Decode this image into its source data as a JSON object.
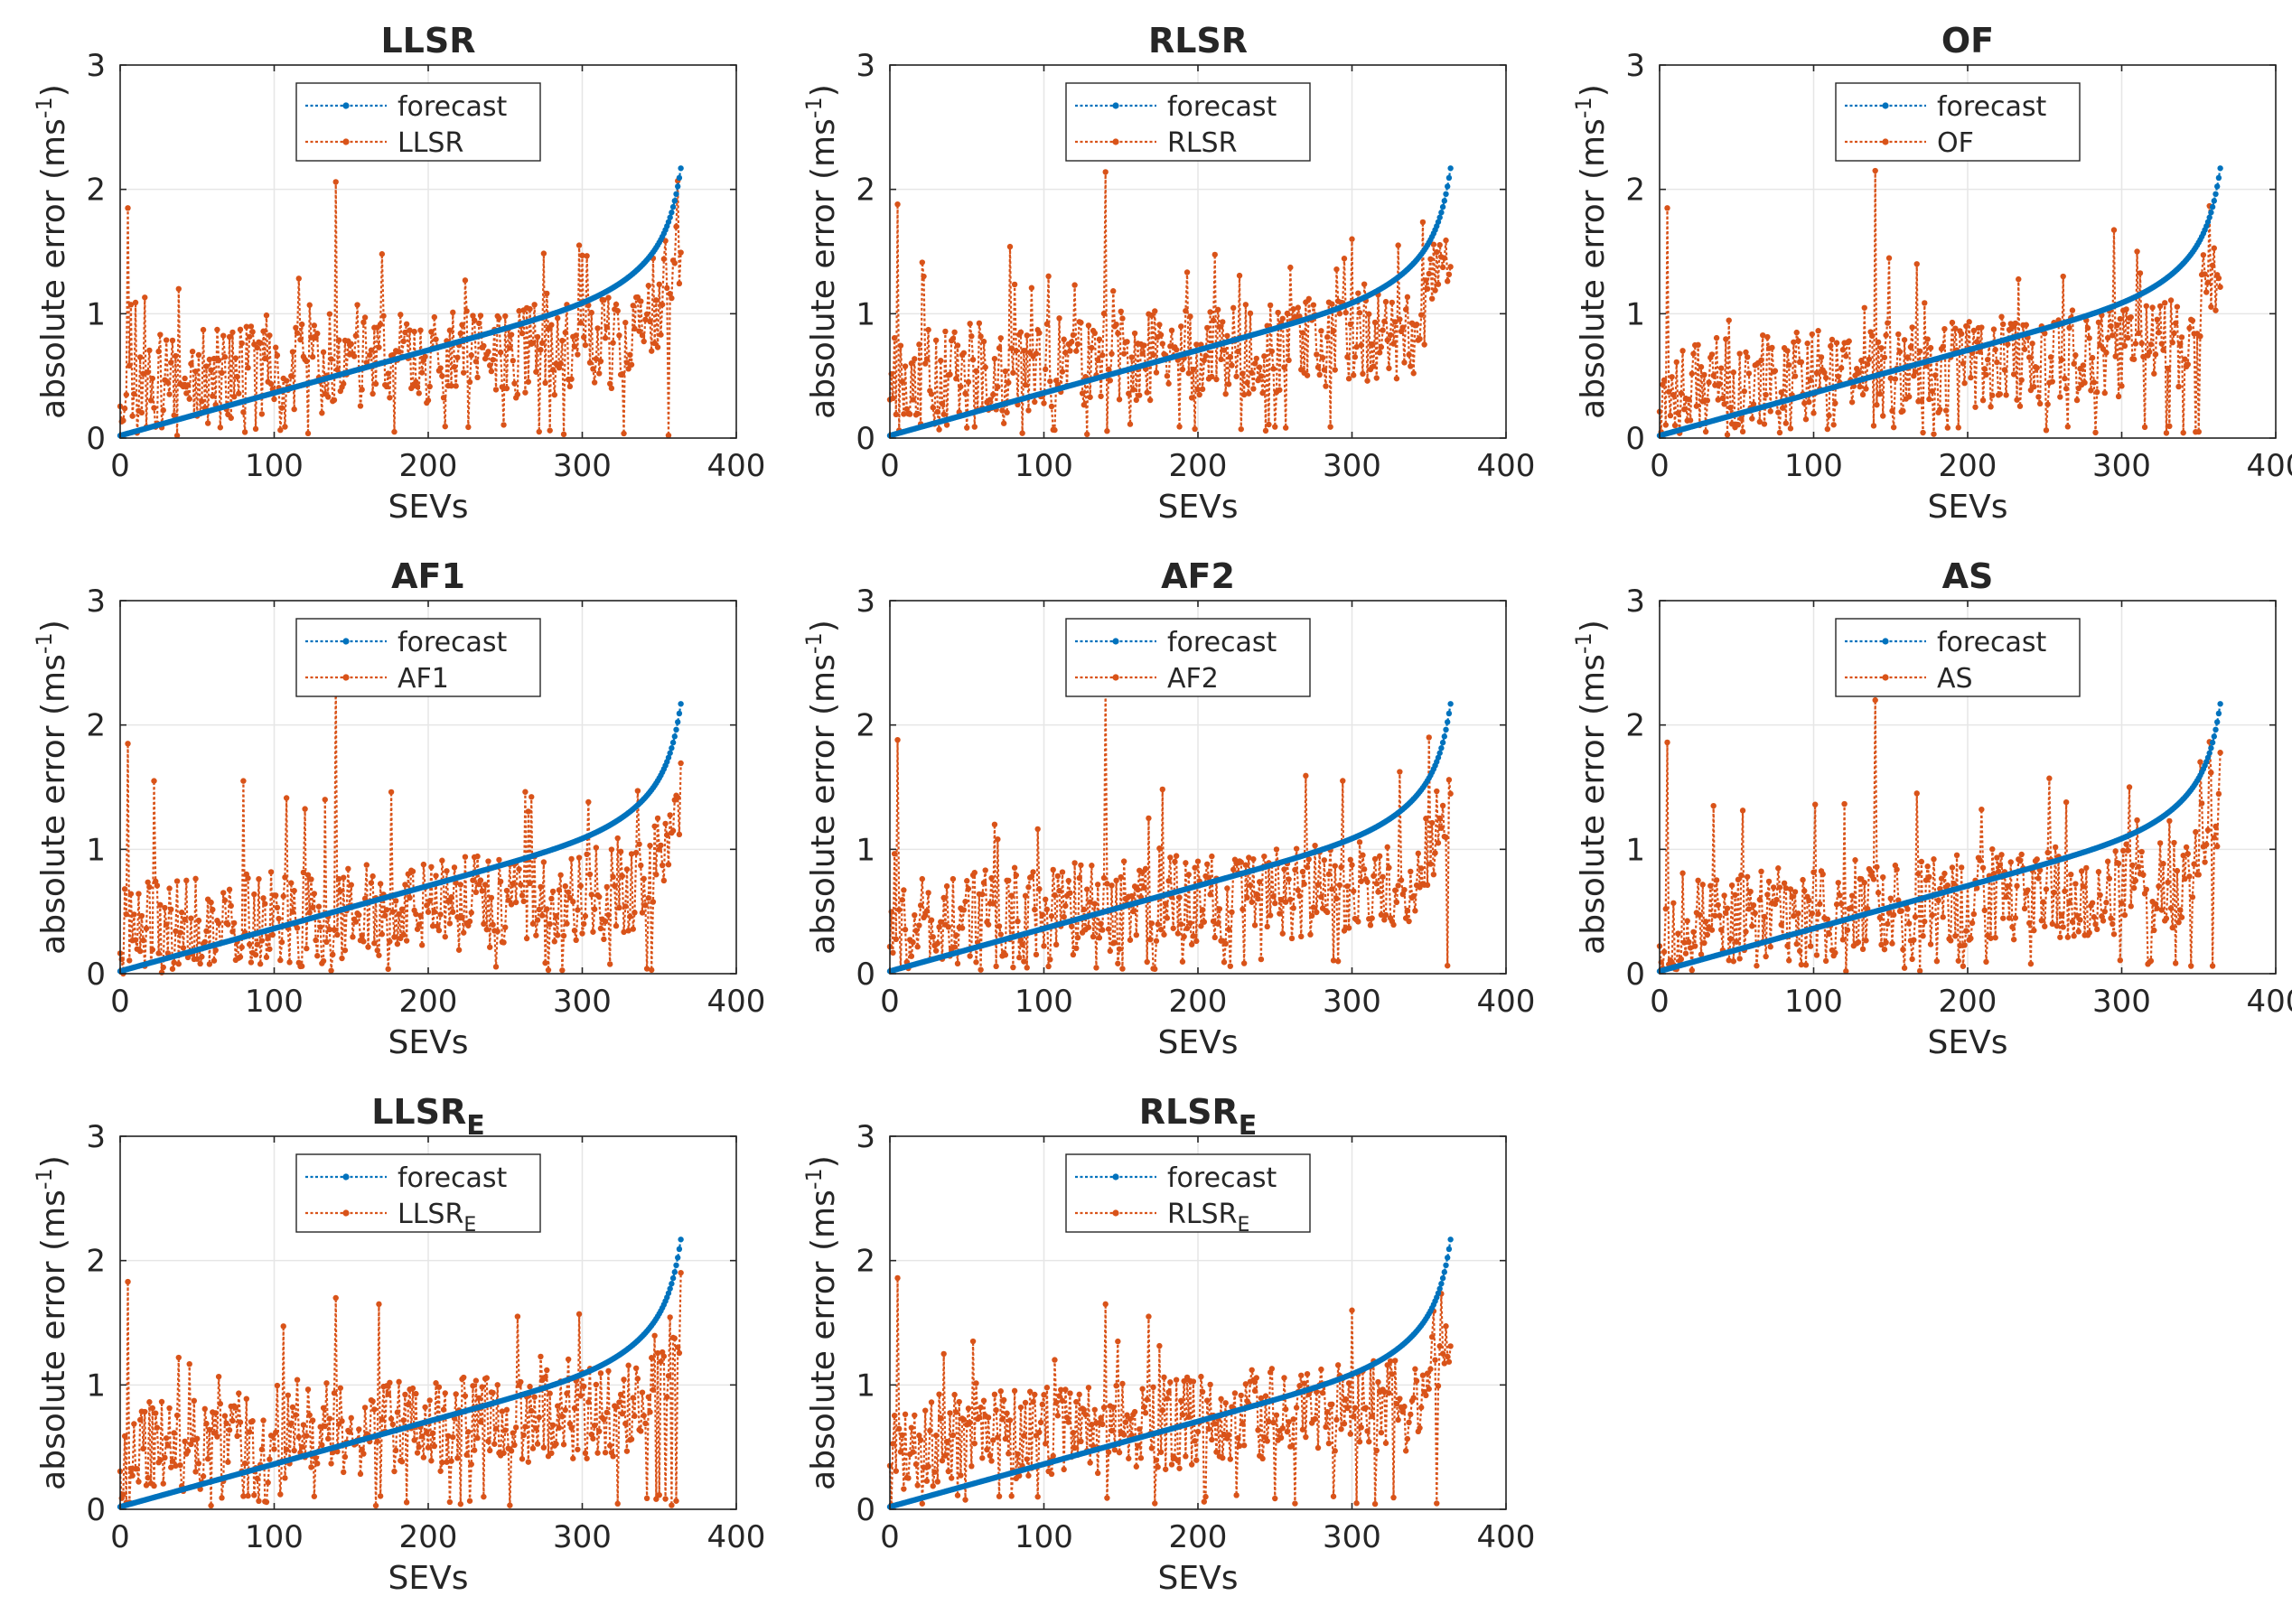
{
  "figure": {
    "layout": "3x3 grid, 8 panels"
  },
  "colors": {
    "forecast": "#0072BD",
    "model": "#D95319",
    "grid": "#e6e6e6",
    "axis": "#262626"
  },
  "chart_data": [
    {
      "type": "line",
      "title": "LLSR",
      "title_sub": "",
      "xlabel": "SEVs",
      "ylabel": "absolute error (ms-1)",
      "ylabel_main": "absolute error (ms",
      "ylabel_sup": "-1",
      "ylabel_close": ")",
      "xlim": [
        0,
        400
      ],
      "ylim": [
        0,
        3
      ],
      "xticks": [
        "0",
        "100",
        "200",
        "300",
        "400"
      ],
      "yticks": [
        "0",
        "1",
        "2",
        "3"
      ],
      "grid": true,
      "legend_position": "top-center",
      "series": [
        {
          "name": "forecast",
          "legend_main": "forecast",
          "legend_sub": "",
          "style": "forecast"
        },
        {
          "name": "LLSR",
          "legend_main": "LLSR",
          "legend_sub": "",
          "style": "model",
          "seed": 11,
          "peaks": [
            [
              5,
              1.85
            ],
            [
              140,
              2.06
            ],
            [
              38,
              1.2
            ],
            [
              170,
              1.48
            ],
            [
              298,
              1.55
            ],
            [
              338,
              1.1
            ]
          ],
          "base_shift": 0.05,
          "tail_scale": 1.0
        }
      ]
    },
    {
      "type": "line",
      "title": "RLSR",
      "title_sub": "",
      "xlabel": "SEVs",
      "ylabel": "absolute error (ms-1)",
      "ylabel_main": "absolute error (ms",
      "ylabel_sup": "-1",
      "ylabel_close": ")",
      "xlim": [
        0,
        400
      ],
      "ylim": [
        0,
        3
      ],
      "xticks": [
        "0",
        "100",
        "200",
        "300",
        "400"
      ],
      "yticks": [
        "0",
        "1",
        "2",
        "3"
      ],
      "grid": true,
      "legend_position": "top-center",
      "series": [
        {
          "name": "forecast",
          "legend_main": "forecast",
          "legend_sub": "",
          "style": "forecast"
        },
        {
          "name": "RLSR",
          "legend_main": "RLSR",
          "legend_sub": "",
          "style": "model",
          "seed": 23,
          "peaks": [
            [
              5,
              1.88
            ],
            [
              140,
              2.14
            ],
            [
              22,
              1.3
            ],
            [
              300,
              1.6
            ],
            [
              330,
              1.55
            ]
          ],
          "base_shift": 0.1,
          "tail_scale": 1.0
        }
      ]
    },
    {
      "type": "line",
      "title": "OF",
      "title_sub": "",
      "xlabel": "SEVs",
      "ylabel": "absolute error (ms-1)",
      "ylabel_main": "absolute error (ms",
      "ylabel_sup": "-1",
      "ylabel_close": ")",
      "xlim": [
        0,
        400
      ],
      "ylim": [
        0,
        3
      ],
      "xticks": [
        "0",
        "100",
        "200",
        "300",
        "400"
      ],
      "yticks": [
        "0",
        "1",
        "2",
        "3"
      ],
      "grid": true,
      "legend_position": "top-center",
      "series": [
        {
          "name": "forecast",
          "legend_main": "forecast",
          "legend_sub": "",
          "style": "forecast"
        },
        {
          "name": "OF",
          "legend_main": "OF",
          "legend_sub": "",
          "style": "model",
          "seed": 37,
          "peaks": [
            [
              5,
              1.85
            ],
            [
              140,
              2.15
            ],
            [
              167,
              1.4
            ],
            [
              310,
              1.5
            ],
            [
              262,
              1.3
            ]
          ],
          "base_shift": 0.0,
          "tail_scale": 1.0
        }
      ]
    },
    {
      "type": "line",
      "title": "AF1",
      "title_sub": "",
      "xlabel": "SEVs",
      "ylabel": "absolute error (ms-1)",
      "ylabel_main": "absolute error (ms",
      "ylabel_sup": "-1",
      "ylabel_close": ")",
      "xlim": [
        0,
        400
      ],
      "ylim": [
        0,
        3
      ],
      "xticks": [
        "0",
        "100",
        "200",
        "300",
        "400"
      ],
      "yticks": [
        "0",
        "1",
        "2",
        "3"
      ],
      "grid": true,
      "legend_position": "top-center",
      "series": [
        {
          "name": "forecast",
          "legend_main": "forecast",
          "legend_sub": "",
          "style": "forecast"
        },
        {
          "name": "AF1",
          "legend_main": "AF1",
          "legend_sub": "",
          "style": "model",
          "seed": 41,
          "peaks": [
            [
              5,
              1.85
            ],
            [
              140,
              2.4
            ],
            [
              22,
              1.55
            ],
            [
              80,
              1.55
            ],
            [
              133,
              1.4
            ]
          ],
          "base_shift": -0.05,
          "tail_scale": 0.9
        }
      ]
    },
    {
      "type": "line",
      "title": "AF2",
      "title_sub": "",
      "xlabel": "SEVs",
      "ylabel": "absolute error (ms-1)",
      "ylabel_main": "absolute error (ms",
      "ylabel_sup": "-1",
      "ylabel_close": ")",
      "xlim": [
        0,
        400
      ],
      "ylim": [
        0,
        3
      ],
      "xticks": [
        "0",
        "100",
        "200",
        "300",
        "400"
      ],
      "yticks": [
        "0",
        "1",
        "2",
        "3"
      ],
      "grid": true,
      "legend_position": "top-center",
      "series": [
        {
          "name": "forecast",
          "legend_main": "forecast",
          "legend_sub": "",
          "style": "forecast"
        },
        {
          "name": "AF2",
          "legend_main": "AF2",
          "legend_sub": "",
          "style": "model",
          "seed": 53,
          "peaks": [
            [
              5,
              1.88
            ],
            [
              140,
              2.3
            ],
            [
              68,
              1.2
            ],
            [
              168,
              1.25
            ],
            [
              350,
              1.9
            ]
          ],
          "base_shift": 0.0,
          "tail_scale": 1.0
        }
      ]
    },
    {
      "type": "line",
      "title": "AS",
      "title_sub": "",
      "xlabel": "SEVs",
      "ylabel": "absolute error (ms-1)",
      "ylabel_main": "absolute error (ms",
      "ylabel_sup": "-1",
      "ylabel_close": ")",
      "xlim": [
        0,
        400
      ],
      "ylim": [
        0,
        3
      ],
      "xticks": [
        "0",
        "100",
        "200",
        "300",
        "400"
      ],
      "yticks": [
        "0",
        "1",
        "2",
        "3"
      ],
      "grid": true,
      "legend_position": "top-center",
      "series": [
        {
          "name": "forecast",
          "legend_main": "forecast",
          "legend_sub": "",
          "style": "forecast"
        },
        {
          "name": "AS",
          "legend_main": "AS",
          "legend_sub": "",
          "style": "model",
          "seed": 67,
          "peaks": [
            [
              5,
              1.86
            ],
            [
              140,
              2.2
            ],
            [
              167,
              1.45
            ],
            [
              35,
              1.35
            ],
            [
              305,
              1.5
            ]
          ],
          "base_shift": 0.0,
          "tail_scale": 1.0
        }
      ]
    },
    {
      "type": "line",
      "title": "LLSR",
      "title_sub": "E",
      "xlabel": "SEVs",
      "ylabel": "absolute error (ms-1)",
      "ylabel_main": "absolute error (ms",
      "ylabel_sup": "-1",
      "ylabel_close": ")",
      "xlim": [
        0,
        400
      ],
      "ylim": [
        0,
        3
      ],
      "xticks": [
        "0",
        "100",
        "200",
        "300",
        "400"
      ],
      "yticks": [
        "0",
        "1",
        "2",
        "3"
      ],
      "grid": true,
      "legend_position": "top-center",
      "series": [
        {
          "name": "forecast",
          "legend_main": "forecast",
          "legend_sub": "",
          "style": "forecast"
        },
        {
          "name": "LLSR_E",
          "legend_main": "LLSR",
          "legend_sub": "E",
          "style": "model",
          "seed": 79,
          "peaks": [
            [
              5,
              1.83
            ],
            [
              140,
              1.7
            ],
            [
              168,
              1.65
            ],
            [
              298,
              1.57
            ],
            [
              38,
              1.22
            ]
          ],
          "base_shift": 0.08,
          "tail_scale": 1.0
        }
      ]
    },
    {
      "type": "line",
      "title": "RLSR",
      "title_sub": "E",
      "xlabel": "SEVs",
      "ylabel": "absolute error (ms-1)",
      "ylabel_main": "absolute error (ms",
      "ylabel_sup": "-1",
      "ylabel_close": ")",
      "xlim": [
        0,
        400
      ],
      "ylim": [
        0,
        3
      ],
      "xticks": [
        "0",
        "100",
        "200",
        "300",
        "400"
      ],
      "yticks": [
        "0",
        "1",
        "2",
        "3"
      ],
      "grid": true,
      "legend_position": "top-center",
      "series": [
        {
          "name": "forecast",
          "legend_main": "forecast",
          "legend_sub": "",
          "style": "forecast"
        },
        {
          "name": "RLSR_E",
          "legend_main": "RLSR",
          "legend_sub": "E",
          "style": "model",
          "seed": 97,
          "peaks": [
            [
              5,
              1.86
            ],
            [
              140,
              1.65
            ],
            [
              168,
              1.55
            ],
            [
              300,
              1.6
            ],
            [
              35,
              1.25
            ]
          ],
          "base_shift": 0.12,
          "tail_scale": 1.0
        }
      ]
    }
  ]
}
